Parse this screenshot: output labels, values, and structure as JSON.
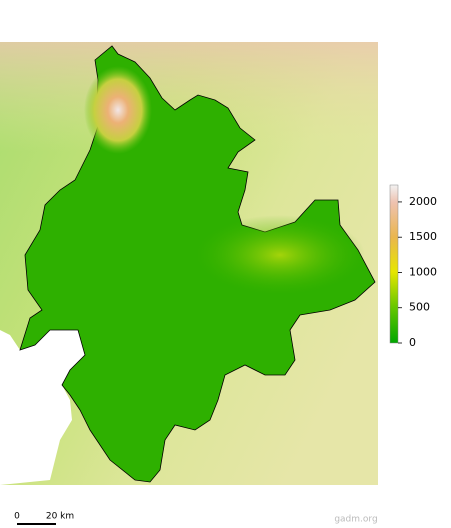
{
  "legend": {
    "lim": [
      0,
      2240
    ],
    "ticks": [
      0,
      500,
      1000,
      1500,
      2000
    ]
  },
  "scale_bar": {
    "labels": [
      "0",
      "20 km"
    ]
  },
  "credit": "gadm.org"
}
